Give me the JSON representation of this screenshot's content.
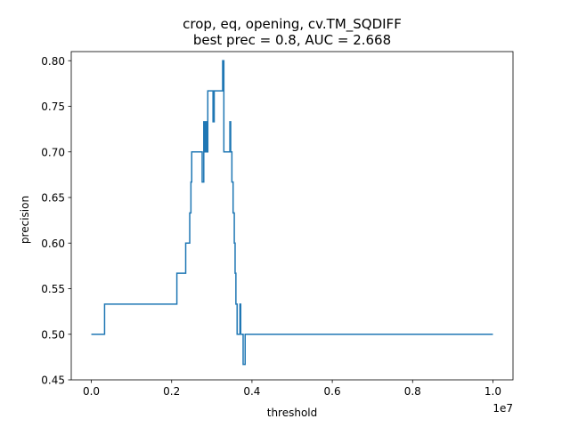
{
  "chart_data": {
    "type": "line",
    "title": [
      "crop, eq, opening, cv.TM_SQDIFF",
      "best prec = 0.8, AUC = 2.668"
    ],
    "xlabel": "threshold",
    "ylabel": "precision",
    "x_offset_label": "1e7",
    "xlim": [
      -500000,
      10500000
    ],
    "ylim": [
      0.45,
      0.81
    ],
    "xticks": [
      0,
      2000000,
      4000000,
      6000000,
      8000000,
      10000000
    ],
    "xtick_labels": [
      "0.0",
      "0.2",
      "0.4",
      "0.6",
      "0.8",
      "1.0"
    ],
    "yticks": [
      0.45,
      0.5,
      0.55,
      0.6,
      0.65,
      0.7,
      0.75,
      0.8
    ],
    "ytick_labels": [
      "0.45",
      "0.50",
      "0.55",
      "0.60",
      "0.65",
      "0.70",
      "0.75",
      "0.80"
    ],
    "grid": false,
    "line_color": "#1f77b4",
    "series": [
      {
        "x": [
          0,
          330000,
          330000,
          2130000,
          2130000,
          2350000,
          2350000,
          2450000,
          2450000,
          2480000,
          2480000,
          2500000,
          2500000,
          2760000,
          2760000,
          2800000,
          2800000,
          2830000,
          2830000,
          2850000,
          2850000,
          2880000,
          2880000,
          2900000,
          2900000,
          3030000,
          3030000,
          3060000,
          3060000,
          3270000,
          3270000,
          3300000,
          3300000,
          3450000,
          3450000,
          3470000,
          3470000,
          3500000,
          3500000,
          3530000,
          3530000,
          3560000,
          3560000,
          3580000,
          3580000,
          3600000,
          3600000,
          3630000,
          3630000,
          3700000,
          3700000,
          3720000,
          3720000,
          3750000,
          3750000,
          3780000,
          3780000,
          3830000,
          3830000,
          3960000,
          3960000,
          10000000
        ],
        "y": [
          0.5,
          0.5,
          0.533,
          0.533,
          0.567,
          0.567,
          0.6,
          0.6,
          0.633,
          0.633,
          0.667,
          0.667,
          0.7,
          0.7,
          0.667,
          0.667,
          0.733,
          0.733,
          0.7,
          0.7,
          0.733,
          0.733,
          0.7,
          0.7,
          0.767,
          0.767,
          0.733,
          0.733,
          0.767,
          0.767,
          0.8,
          0.8,
          0.7,
          0.7,
          0.733,
          0.733,
          0.7,
          0.7,
          0.667,
          0.667,
          0.633,
          0.633,
          0.6,
          0.6,
          0.567,
          0.567,
          0.533,
          0.533,
          0.5,
          0.5,
          0.533,
          0.533,
          0.5,
          0.5,
          0.5,
          0.5,
          0.467,
          0.467,
          0.5,
          0.5,
          0.5,
          0.5
        ]
      }
    ]
  }
}
